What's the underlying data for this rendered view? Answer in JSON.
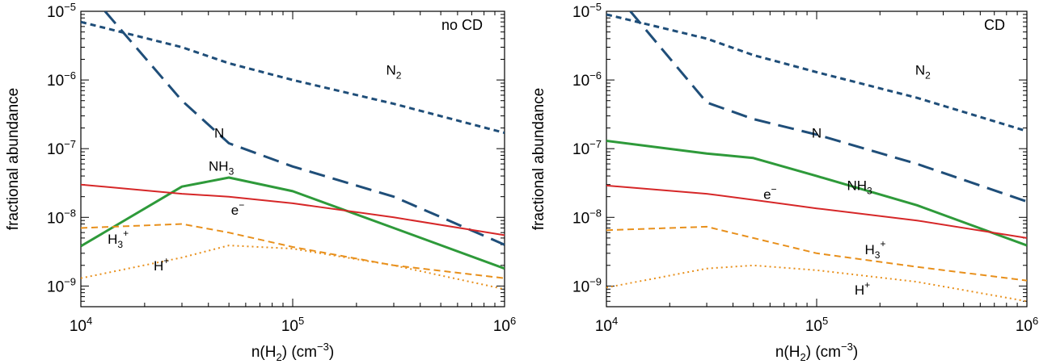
{
  "chart_data": [
    {
      "type": "line",
      "panel_label": "no CD",
      "xlabel": {
        "base": "n(H",
        "sub": "2",
        "mid": ") (cm",
        "sup": "−3",
        "end": ")"
      },
      "ylabel": "fractional abundance",
      "xscale": "log",
      "yscale": "log",
      "xlim": [
        10000,
        1000000
      ],
      "ylim": [
        5e-10,
        1e-05
      ],
      "x_ticks": [
        {
          "value": 10000,
          "base": "10",
          "exp": "4"
        },
        {
          "value": 100000,
          "base": "10",
          "exp": "5"
        },
        {
          "value": 1000000,
          "base": "10",
          "exp": "6"
        }
      ],
      "y_ticks": [
        {
          "value": 1e-09,
          "base": "10",
          "exp": "−9"
        },
        {
          "value": 1e-08,
          "base": "10",
          "exp": "−8"
        },
        {
          "value": 1e-07,
          "base": "10",
          "exp": "−7"
        },
        {
          "value": 1e-06,
          "base": "10",
          "exp": "−6"
        },
        {
          "value": 1e-05,
          "base": "10",
          "exp": "−5"
        }
      ],
      "series": [
        {
          "id": "N2",
          "label": {
            "base": "N",
            "sub": "2",
            "sup": ""
          },
          "label_at": [
            300000,
            1.2e-06
          ],
          "color": "#1f4e79",
          "dash": "7,5",
          "width": 3,
          "x": [
            10000,
            30000,
            50000,
            100000,
            300000,
            1000000
          ],
          "y": [
            7e-06,
            3e-06,
            1.75e-06,
            1e-06,
            4.5e-07,
            1.7e-07
          ]
        },
        {
          "id": "N",
          "label": {
            "base": "N",
            "sub": "",
            "sup": ""
          },
          "label_at": [
            45000,
            1.45e-07
          ],
          "color": "#1f4e79",
          "dash": "20,10",
          "width": 3,
          "x": [
            13000,
            30000,
            50000,
            100000,
            300000,
            1000000
          ],
          "y": [
            1e-05,
            5e-07,
            1.2e-07,
            5.5e-08,
            2e-08,
            4e-09
          ]
        },
        {
          "id": "NH3",
          "label": {
            "base": "NH",
            "sub": "3",
            "sup": ""
          },
          "label_at": [
            46000,
            4.8e-08
          ],
          "color": "#2e9a3a",
          "dash": "",
          "width": 3,
          "x": [
            10000,
            30000,
            50000,
            100000,
            300000,
            1000000
          ],
          "y": [
            3.8e-09,
            2.8e-08,
            3.8e-08,
            2.4e-08,
            7e-09,
            1.8e-09
          ]
        },
        {
          "id": "e",
          "label": {
            "base": "e",
            "sub": "",
            "sup": "−"
          },
          "label_at": [
            55000,
            1.1e-08
          ],
          "color": "#d62728",
          "dash": "",
          "width": 2,
          "x": [
            10000,
            30000,
            50000,
            100000,
            300000,
            1000000
          ],
          "y": [
            3e-08,
            2.2e-08,
            2e-08,
            1.6e-08,
            1e-08,
            5.5e-09
          ]
        },
        {
          "id": "H3p",
          "label": {
            "base": "H",
            "sub": "3",
            "sup": "+"
          },
          "label_at": [
            15000,
            4.1e-09
          ],
          "color": "#e8901c",
          "dash": "8,5",
          "width": 2,
          "x": [
            10000,
            30000,
            50000,
            100000,
            300000,
            1000000
          ],
          "y": [
            7e-09,
            8e-09,
            6e-09,
            3.7e-09,
            2e-09,
            1.3e-09
          ]
        },
        {
          "id": "Hp",
          "label": {
            "base": "H",
            "sub": "",
            "sup": "+"
          },
          "label_at": [
            24000,
            1.7e-09
          ],
          "color": "#e8901c",
          "dash": "2,4",
          "width": 2,
          "x": [
            10000,
            30000,
            50000,
            100000,
            300000,
            1000000
          ],
          "y": [
            1.3e-09,
            2.6e-09,
            3.9e-09,
            3.5e-09,
            2e-09,
            9e-10
          ]
        }
      ]
    },
    {
      "type": "line",
      "panel_label": "CD",
      "xlabel": {
        "base": "n(H",
        "sub": "2",
        "mid": ") (cm",
        "sup": "−3",
        "end": ")"
      },
      "ylabel": "fractional abundance",
      "xscale": "log",
      "yscale": "log",
      "xlim": [
        10000,
        1000000
      ],
      "ylim": [
        5e-10,
        1e-05
      ],
      "x_ticks": [
        {
          "value": 10000,
          "base": "10",
          "exp": "4"
        },
        {
          "value": 100000,
          "base": "10",
          "exp": "5"
        },
        {
          "value": 1000000,
          "base": "10",
          "exp": "6"
        }
      ],
      "y_ticks": [
        {
          "value": 1e-09,
          "base": "10",
          "exp": "−9"
        },
        {
          "value": 1e-08,
          "base": "10",
          "exp": "−8"
        },
        {
          "value": 1e-07,
          "base": "10",
          "exp": "−7"
        },
        {
          "value": 1e-06,
          "base": "10",
          "exp": "−6"
        },
        {
          "value": 1e-05,
          "base": "10",
          "exp": "−5"
        }
      ],
      "series": [
        {
          "id": "N2",
          "label": {
            "base": "N",
            "sub": "2",
            "sup": ""
          },
          "label_at": [
            320000,
            1.2e-06
          ],
          "color": "#1f4e79",
          "dash": "7,5",
          "width": 3,
          "x": [
            10000,
            30000,
            50000,
            100000,
            300000,
            1000000
          ],
          "y": [
            9e-06,
            4e-06,
            2.3e-06,
            1.3e-06,
            5.5e-07,
            1.8e-07
          ]
        },
        {
          "id": "N",
          "label": {
            "base": "N",
            "sub": "",
            "sup": ""
          },
          "label_at": [
            100000,
            1.45e-07
          ],
          "color": "#1f4e79",
          "dash": "20,10",
          "width": 3,
          "x": [
            13000,
            30000,
            50000,
            100000,
            300000,
            1000000
          ],
          "y": [
            1e-05,
            4.7e-07,
            2.7e-07,
            1.6e-07,
            6e-08,
            1.7e-08
          ]
        },
        {
          "id": "NH3",
          "label": {
            "base": "NH",
            "sub": "3",
            "sup": ""
          },
          "label_at": [
            160000,
            2.5e-08
          ],
          "color": "#2e9a3a",
          "dash": "",
          "width": 3,
          "x": [
            10000,
            30000,
            50000,
            100000,
            300000,
            1000000
          ],
          "y": [
            1.3e-07,
            8.5e-08,
            7.3e-08,
            4e-08,
            1.5e-08,
            3.9e-09
          ]
        },
        {
          "id": "e",
          "label": {
            "base": "e",
            "sub": "",
            "sup": "−"
          },
          "label_at": [
            60000,
            1.85e-08
          ],
          "color": "#d62728",
          "dash": "",
          "width": 2,
          "x": [
            10000,
            30000,
            50000,
            100000,
            300000,
            1000000
          ],
          "y": [
            2.9e-08,
            2.2e-08,
            1.8e-08,
            1.35e-08,
            9e-09,
            5e-09
          ]
        },
        {
          "id": "H3p",
          "label": {
            "base": "H",
            "sub": "3",
            "sup": "+"
          },
          "label_at": [
            190000,
            2.9e-09
          ],
          "color": "#e8901c",
          "dash": "8,5",
          "width": 2,
          "x": [
            10000,
            30000,
            50000,
            100000,
            300000,
            1000000
          ],
          "y": [
            6.5e-09,
            7.3e-09,
            5e-09,
            3e-09,
            1.9e-09,
            1.2e-09
          ]
        },
        {
          "id": "Hp",
          "label": {
            "base": "H",
            "sub": "",
            "sup": "+"
          },
          "label_at": [
            165000,
            7.5e-10
          ],
          "color": "#e8901c",
          "dash": "2,4",
          "width": 2,
          "x": [
            10000,
            30000,
            50000,
            100000,
            300000,
            1000000
          ],
          "y": [
            9.5e-10,
            1.8e-09,
            2e-09,
            1.7e-09,
            1.15e-09,
            6e-10
          ]
        }
      ]
    }
  ]
}
